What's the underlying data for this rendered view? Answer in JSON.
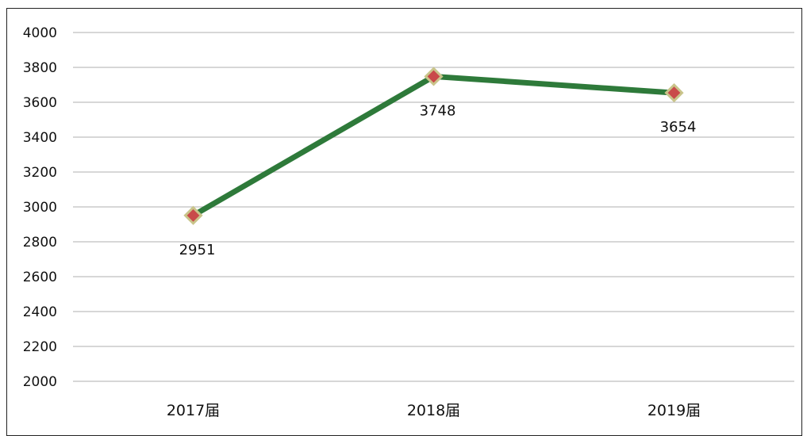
{
  "chart_data": {
    "type": "line",
    "categories": [
      "2017届",
      "2018届",
      "2019届"
    ],
    "series": [
      {
        "values": [
          2951,
          3748,
          3654
        ],
        "color": "#2e7a3a",
        "marker_color": "#c94a4a",
        "marker_outline": "#c9c48a"
      }
    ],
    "data_labels": [
      "2951",
      "3748",
      "3654"
    ],
    "ylim": [
      2000,
      4000
    ],
    "yticks": [
      2000,
      2200,
      2400,
      2600,
      2800,
      3000,
      3200,
      3400,
      3600,
      3800,
      4000
    ],
    "grid": true,
    "gridline_color": "#bfbfbf",
    "legend": "none"
  }
}
